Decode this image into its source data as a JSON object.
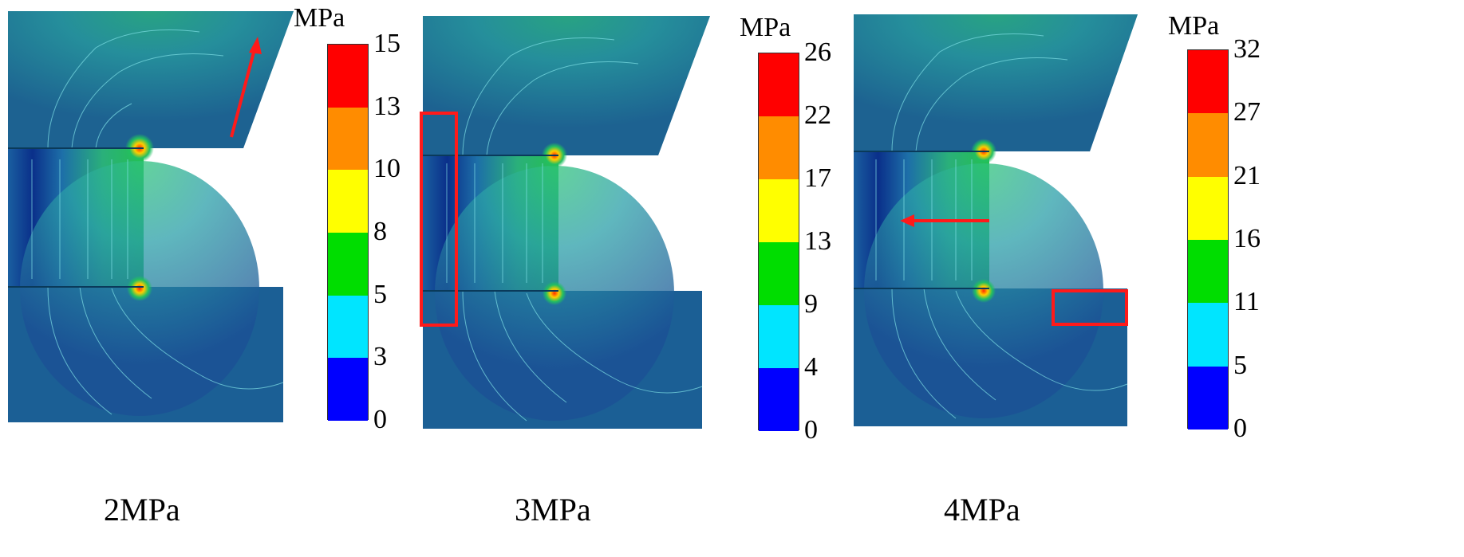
{
  "colormap": [
    "#0000ff",
    "#00e5ff",
    "#00dd00",
    "#ffff00",
    "#ff8c00",
    "#ff0000"
  ],
  "section_colors": {
    "fill": "#1f6f8b",
    "dark": "#0a2f8a",
    "mid": "#2aa0a8",
    "high": "#22c060",
    "contour": "#7fe0e6"
  },
  "marker_color": "#ff1a1a",
  "panels": [
    {
      "caption": "2MPa",
      "unit": "MPa",
      "ticks": [
        "0",
        "3",
        "5",
        "8",
        "10",
        "13",
        "15"
      ],
      "marker": "arrow-up-right"
    },
    {
      "caption": "3MPa",
      "unit": "MPa",
      "ticks": [
        "0",
        "4",
        "9",
        "13",
        "17",
        "22",
        "26"
      ],
      "marker": "box-left-column"
    },
    {
      "caption": "4MPa",
      "unit": "MPa",
      "ticks": [
        "0",
        "5",
        "11",
        "16",
        "21",
        "27",
        "32"
      ],
      "marker": "arrow-left-and-box"
    }
  ]
}
